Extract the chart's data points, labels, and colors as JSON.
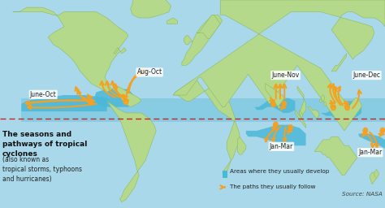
{
  "bg_color": "#a8d8ea",
  "land_color": "#b5d98a",
  "land_edge": "#8fba60",
  "equator_color": "#cc2222",
  "ocean_stripe_color": "#4ab8d8",
  "arrow_color": "#f5a020",
  "arrow_edge": "#c07800",
  "title_bold": "The seasons and\npathways of tropical\ncyclones",
  "title_normal": "(also known as\ntropical storms, typhoons\nand hurricanes)",
  "legend_develop": "Areas where they usually develop",
  "legend_paths": "The paths they usually follow",
  "source": "Source: NASA",
  "figsize": [
    4.74,
    2.56
  ],
  "dpi": 100,
  "xlim": [
    -180,
    180
  ],
  "ylim": [
    -60,
    80
  ],
  "equator_lat": 0,
  "tropic_lat": 23.5
}
